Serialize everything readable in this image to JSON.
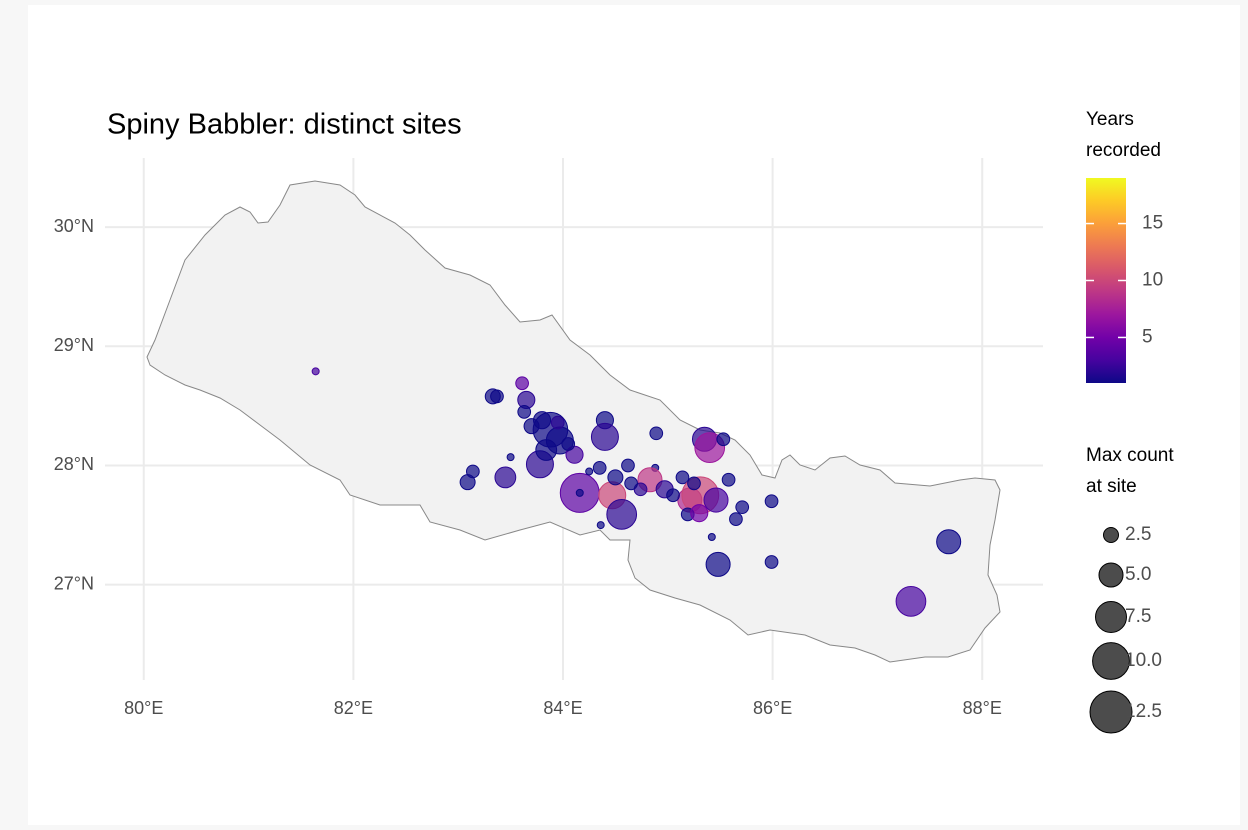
{
  "chart_data": {
    "type": "scatter",
    "title": "Spiny Babbler: distinct sites",
    "x": [
      81.64,
      83.09,
      83.14,
      83.33,
      83.37,
      83.45,
      83.5,
      83.61,
      83.65,
      83.63,
      83.78,
      83.88,
      83.97,
      83.84,
      83.8,
      83.7,
      83.95,
      84.11,
      84.05,
      84.16,
      84.16,
      84.4,
      84.4,
      84.47,
      84.56,
      84.62,
      84.36,
      84.35,
      84.5,
      84.89,
      84.88,
      84.83,
      84.74,
      84.97,
      85.14,
      85.21,
      85.35,
      85.4,
      85.53,
      85.31,
      85.46,
      85.58,
      85.71,
      85.65,
      85.48,
      85.99,
      85.99,
      87.32,
      87.68,
      85.19,
      85.05,
      85.3,
      85.42,
      84.65,
      84.25,
      85.25
    ],
    "values": [
      28.79,
      27.86,
      27.95,
      28.58,
      28.58,
      27.9,
      28.07,
      28.69,
      28.55,
      28.45,
      28.01,
      28.3,
      28.21,
      28.13,
      28.38,
      28.33,
      28.36,
      28.09,
      28.18,
      27.77,
      27.77,
      28.38,
      28.24,
      27.75,
      27.59,
      28.0,
      27.5,
      27.98,
      27.9,
      28.27,
      27.98,
      27.88,
      27.8,
      27.8,
      27.9,
      27.71,
      28.22,
      28.15,
      28.22,
      27.75,
      27.71,
      27.88,
      27.65,
      27.55,
      27.17,
      27.7,
      27.19,
      26.86,
      27.36,
      27.59,
      27.75,
      27.6,
      27.4,
      27.85,
      27.95,
      27.85
    ],
    "sizes": [
      1,
      2.5,
      2,
      2.5,
      2,
      4,
      1,
      2,
      3,
      2,
      6,
      9,
      6,
      4,
      3,
      2.5,
      2,
      3,
      2,
      11,
      1,
      3,
      6,
      6,
      7,
      2,
      1,
      2,
      2.5,
      2,
      1,
      5,
      2,
      3,
      2,
      5,
      5,
      7,
      2,
      10,
      5,
      2,
      2,
      2,
      5,
      2,
      2,
      7,
      5,
      2,
      2,
      3,
      1,
      2,
      1,
      2
    ],
    "years": [
      3,
      1,
      1,
      1,
      1,
      2,
      1,
      4,
      2,
      1,
      2,
      1,
      1,
      1,
      1,
      1,
      2,
      3,
      1,
      4,
      1,
      1,
      2,
      10,
      2,
      1,
      1,
      1,
      1,
      1,
      1,
      9,
      2,
      2,
      1,
      8,
      2,
      7,
      1,
      10,
      3,
      1,
      1,
      1,
      1,
      1,
      1,
      3,
      1,
      1,
      1,
      5,
      1,
      1,
      1,
      1
    ],
    "xlim": [
      79.63,
      88.58
    ],
    "ylim": [
      26.2,
      30.58
    ],
    "xticks": [
      {
        "value": 80,
        "label": "80°E"
      },
      {
        "value": 82,
        "label": "82°E"
      },
      {
        "value": 84,
        "label": "84°E"
      },
      {
        "value": 86,
        "label": "86°E"
      },
      {
        "value": 88,
        "label": "88°E"
      }
    ],
    "yticks": [
      {
        "value": 27,
        "label": "27°N"
      },
      {
        "value": 28,
        "label": "28°N"
      },
      {
        "value": 29,
        "label": "29°N"
      },
      {
        "value": 30,
        "label": "30°N"
      }
    ],
    "grid": true,
    "color_legend": {
      "title": [
        "Years",
        "recorded"
      ],
      "lim": [
        1,
        19
      ],
      "ticks": [
        5,
        10,
        15
      ],
      "colorscale": [
        "#0d0887",
        "#46039f",
        "#7201a8",
        "#9c179e",
        "#bd3786",
        "#d8576b",
        "#ed7953",
        "#fb9f3a",
        "#fdca26",
        "#f0f921"
      ]
    },
    "size_legend": {
      "title": [
        "Max count",
        "at site"
      ],
      "ticks": [
        2.5,
        {
          "value": 5,
          "label": "5.0"
        },
        7.5,
        {
          "value": 10,
          "label": "10.0"
        },
        12.5
      ]
    }
  }
}
